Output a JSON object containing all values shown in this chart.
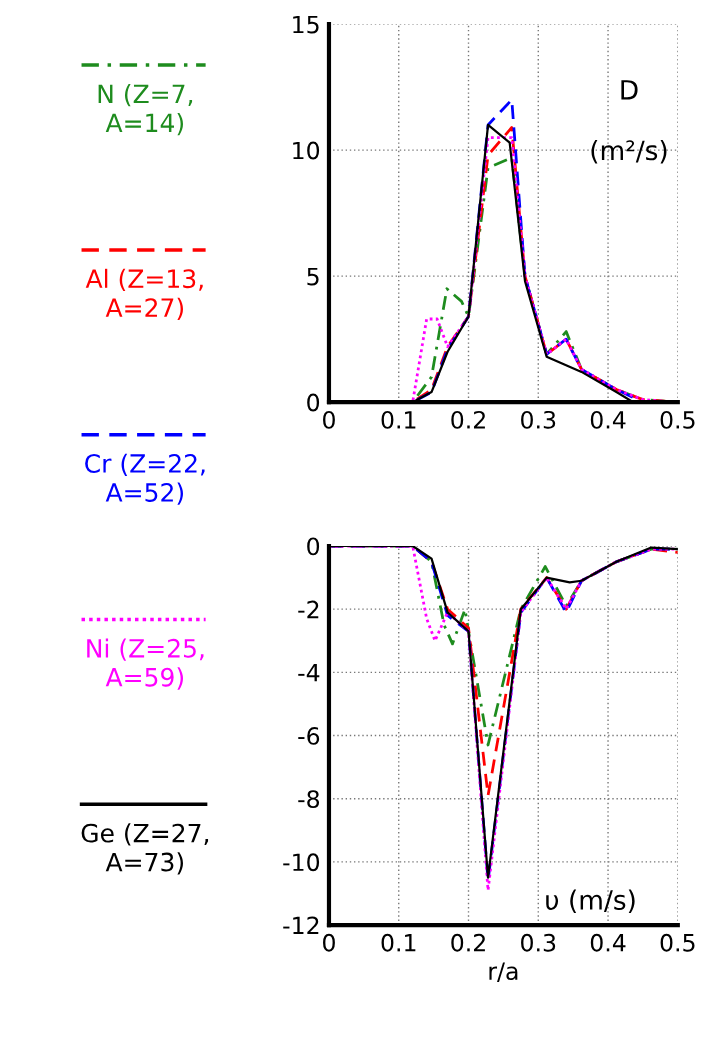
{
  "chart_data": [
    {
      "type": "line",
      "xlim": [
        0,
        0.5
      ],
      "xticks": [
        0,
        0.1,
        0.2,
        0.3,
        0.4,
        0.5
      ],
      "ylim": [
        0,
        15
      ],
      "yticks": [
        0,
        5,
        10,
        15
      ],
      "grid": true,
      "legend": "left",
      "annotations": [
        "D",
        "(m²/s)"
      ],
      "series": [
        {
          "name": "N (Z=7, A=14)",
          "color": "#1e8c1e",
          "line_style": "dashdot",
          "x": [
            0,
            0.12,
            0.147,
            0.169,
            0.19,
            0.2,
            0.228,
            0.262,
            0.281,
            0.312,
            0.34,
            0.362,
            0.412,
            0.45,
            0.5
          ],
          "values": [
            0,
            0,
            1.0,
            4.5,
            4.0,
            3.4,
            9.3,
            9.7,
            5.0,
            1.9,
            2.8,
            1.3,
            0.5,
            0.1,
            0
          ]
        },
        {
          "name": "Al (Z=13, A=27)",
          "color": "#ff0000",
          "line_style": "dashed",
          "x": [
            0,
            0.12,
            0.147,
            0.17,
            0.2,
            0.228,
            0.262,
            0.281,
            0.312,
            0.34,
            0.362,
            0.412,
            0.45,
            0.5
          ],
          "values": [
            0,
            0,
            0.5,
            2.2,
            3.4,
            9.8,
            10.9,
            5.0,
            1.9,
            2.5,
            1.3,
            0.5,
            0.1,
            0
          ]
        },
        {
          "name": "Cr (Z=22, A=52)",
          "color": "#0000ff",
          "line_style": "dashed",
          "x": [
            0,
            0.12,
            0.147,
            0.17,
            0.2,
            0.228,
            0.262,
            0.281,
            0.312,
            0.34,
            0.362,
            0.412,
            0.45,
            0.5
          ],
          "values": [
            0,
            0,
            0.4,
            2.1,
            3.4,
            11.0,
            12.0,
            5.0,
            1.9,
            2.5,
            1.3,
            0.5,
            0,
            0
          ]
        },
        {
          "name": "Ni (Z=25, A=59)",
          "color": "#ff00ff",
          "line_style": "dotted",
          "x": [
            0,
            0.12,
            0.14,
            0.155,
            0.17,
            0.2,
            0.228,
            0.262,
            0.281,
            0.312,
            0.34,
            0.362,
            0.412,
            0.45,
            0.5
          ],
          "values": [
            0,
            0,
            3.3,
            3.3,
            2.2,
            3.4,
            10.5,
            10.5,
            5.0,
            1.9,
            2.5,
            1.3,
            0.5,
            0.1,
            0
          ]
        },
        {
          "name": "Ge (Z=27, A=73)",
          "color": "#000000",
          "line_style": "solid",
          "x": [
            0,
            0.12,
            0.147,
            0.17,
            0.2,
            0.228,
            0.259,
            0.281,
            0.312,
            0.362,
            0.412,
            0.436,
            0.5
          ],
          "values": [
            0,
            0,
            0.4,
            2.0,
            3.4,
            11.0,
            10.3,
            4.8,
            1.8,
            1.2,
            0.4,
            0,
            0
          ]
        }
      ]
    },
    {
      "type": "line",
      "xlabel": "r/a",
      "xlim": [
        0,
        0.5
      ],
      "xticks": [
        0,
        0.1,
        0.2,
        0.3,
        0.4,
        0.5
      ],
      "ylim": [
        -12,
        0
      ],
      "yticks": [
        -12,
        -10,
        -8,
        -6,
        -4,
        -2,
        0
      ],
      "grid": true,
      "annotations": [
        "υ (m/s)"
      ],
      "series": [
        {
          "color": "#1e8c1e",
          "line_style": "dashdot",
          "x": [
            0,
            0.12,
            0.147,
            0.165,
            0.177,
            0.195,
            0.2,
            0.228,
            0.275,
            0.31,
            0.34,
            0.362,
            0.412,
            0.462,
            0.5
          ],
          "values": [
            0,
            0,
            -0.5,
            -2.5,
            -3.1,
            -2.0,
            -2.7,
            -6.3,
            -2.0,
            -0.65,
            -1.9,
            -1.1,
            -0.5,
            -0.1,
            -0.1
          ]
        },
        {
          "color": "#ff0000",
          "line_style": "dashed",
          "x": [
            0,
            0.12,
            0.147,
            0.17,
            0.2,
            0.228,
            0.275,
            0.312,
            0.34,
            0.362,
            0.412,
            0.462,
            0.5
          ],
          "values": [
            0,
            0,
            -0.5,
            -2.0,
            -2.6,
            -7.9,
            -2.0,
            -1.0,
            -2.0,
            -1.1,
            -0.5,
            -0.1,
            -0.2
          ]
        },
        {
          "color": "#0000ff",
          "line_style": "dashed",
          "x": [
            0,
            0.12,
            0.147,
            0.17,
            0.2,
            0.228,
            0.275,
            0.312,
            0.34,
            0.362,
            0.412,
            0.462,
            0.5
          ],
          "values": [
            0,
            0,
            -0.5,
            -2.2,
            -2.7,
            -10.6,
            -2.1,
            -1.0,
            -2.1,
            -1.1,
            -0.5,
            -0.1,
            -0.1
          ]
        },
        {
          "color": "#ff00ff",
          "line_style": "dotted",
          "x": [
            0,
            0.12,
            0.14,
            0.152,
            0.17,
            0.2,
            0.228,
            0.275,
            0.312,
            0.34,
            0.362,
            0.412,
            0.462,
            0.5
          ],
          "values": [
            0,
            0,
            -2.3,
            -3.0,
            -2.1,
            -2.7,
            -10.9,
            -2.1,
            -1.0,
            -2.0,
            -1.1,
            -0.5,
            -0.1,
            -0.1
          ]
        },
        {
          "color": "#000000",
          "line_style": "solid",
          "x": [
            0,
            0.12,
            0.147,
            0.17,
            0.2,
            0.228,
            0.275,
            0.312,
            0.345,
            0.362,
            0.412,
            0.462,
            0.5
          ],
          "values": [
            0,
            0,
            -0.4,
            -2.1,
            -2.7,
            -10.5,
            -2.0,
            -1.0,
            -1.15,
            -1.1,
            -0.5,
            -0.05,
            -0.1
          ]
        }
      ]
    }
  ]
}
